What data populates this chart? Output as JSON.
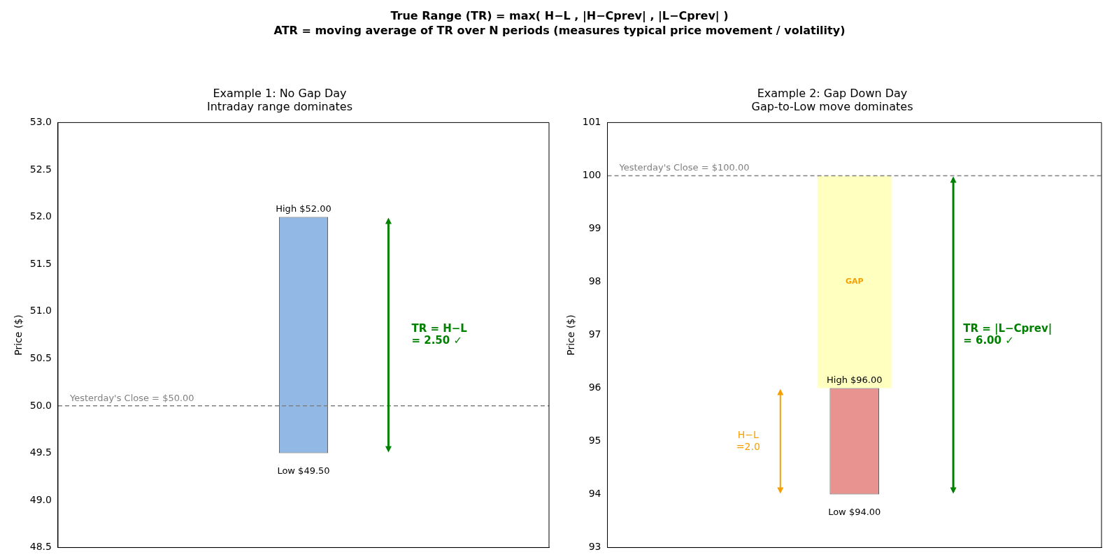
{
  "chart_data": [
    {
      "type": "bar",
      "title": "Example 1: No Gap Day",
      "subtitle": "Intraday range dominates",
      "ylabel": "Price ($)",
      "categories": [
        null
      ],
      "values": [
        2.5
      ],
      "base": [
        49.5
      ],
      "color": "#92b9e6",
      "ylim": [
        48.5,
        53
      ],
      "yticks": [
        48.5,
        {
          "value": 49,
          "label": "49.0"
        },
        49.5,
        {
          "value": 50,
          "label": "50.0"
        },
        50.5,
        {
          "value": 51,
          "label": "51.0"
        },
        51.5,
        {
          "value": 52,
          "label": "52.0"
        },
        52.5,
        {
          "value": 53,
          "label": "53.0"
        }
      ],
      "grid": false,
      "legend": false,
      "tick_labels": "y",
      "ref_lines": [
        {
          "axis": "y",
          "value": 50,
          "label": "Yesterday's Close = $50.00",
          "color": "#808080",
          "line_style": "dashed"
        }
      ],
      "annotations": [
        "True Range (TR) = max( H−L , |H−Cprev| , |L−Cprev| )",
        "ATR = moving average of TR over N periods (measures typical price movement / volatility)",
        {
          "text": "High $52.00",
          "y": 52
        },
        {
          "text": "Low $49.50",
          "y": 49.5
        },
        "TR = H−L\n= 2.50 ✓"
      ]
    },
    {
      "type": "bar",
      "title": "Example 2: Gap Down Day",
      "subtitle": "Gap-to-Low move dominates",
      "ylabel": "Price ($)",
      "categories": [
        null
      ],
      "values": [
        2
      ],
      "base": [
        94
      ],
      "color": "#e89390",
      "ylim": [
        93,
        101
      ],
      "yticks": [
        93,
        94,
        95,
        96,
        97,
        98,
        99,
        100,
        101
      ],
      "grid": false,
      "legend": false,
      "tick_labels": "y",
      "ref_lines": [
        {
          "axis": "y",
          "value": 100,
          "label": "Yesterday's Close = $100.00",
          "color": "#808080",
          "line_style": "dashed"
        }
      ],
      "bands": [
        {
          "axis": "y",
          "from": 96,
          "to": 100,
          "label": "GAP",
          "color": "#ffffc0"
        }
      ],
      "annotations": [
        {
          "text": "High $96.00",
          "y": 96
        },
        {
          "text": "Low $94.00",
          "y": 94
        },
        "TR = |L−Cprev|\n= 6.00 ✓",
        "H−L\n=2.0"
      ]
    }
  ]
}
